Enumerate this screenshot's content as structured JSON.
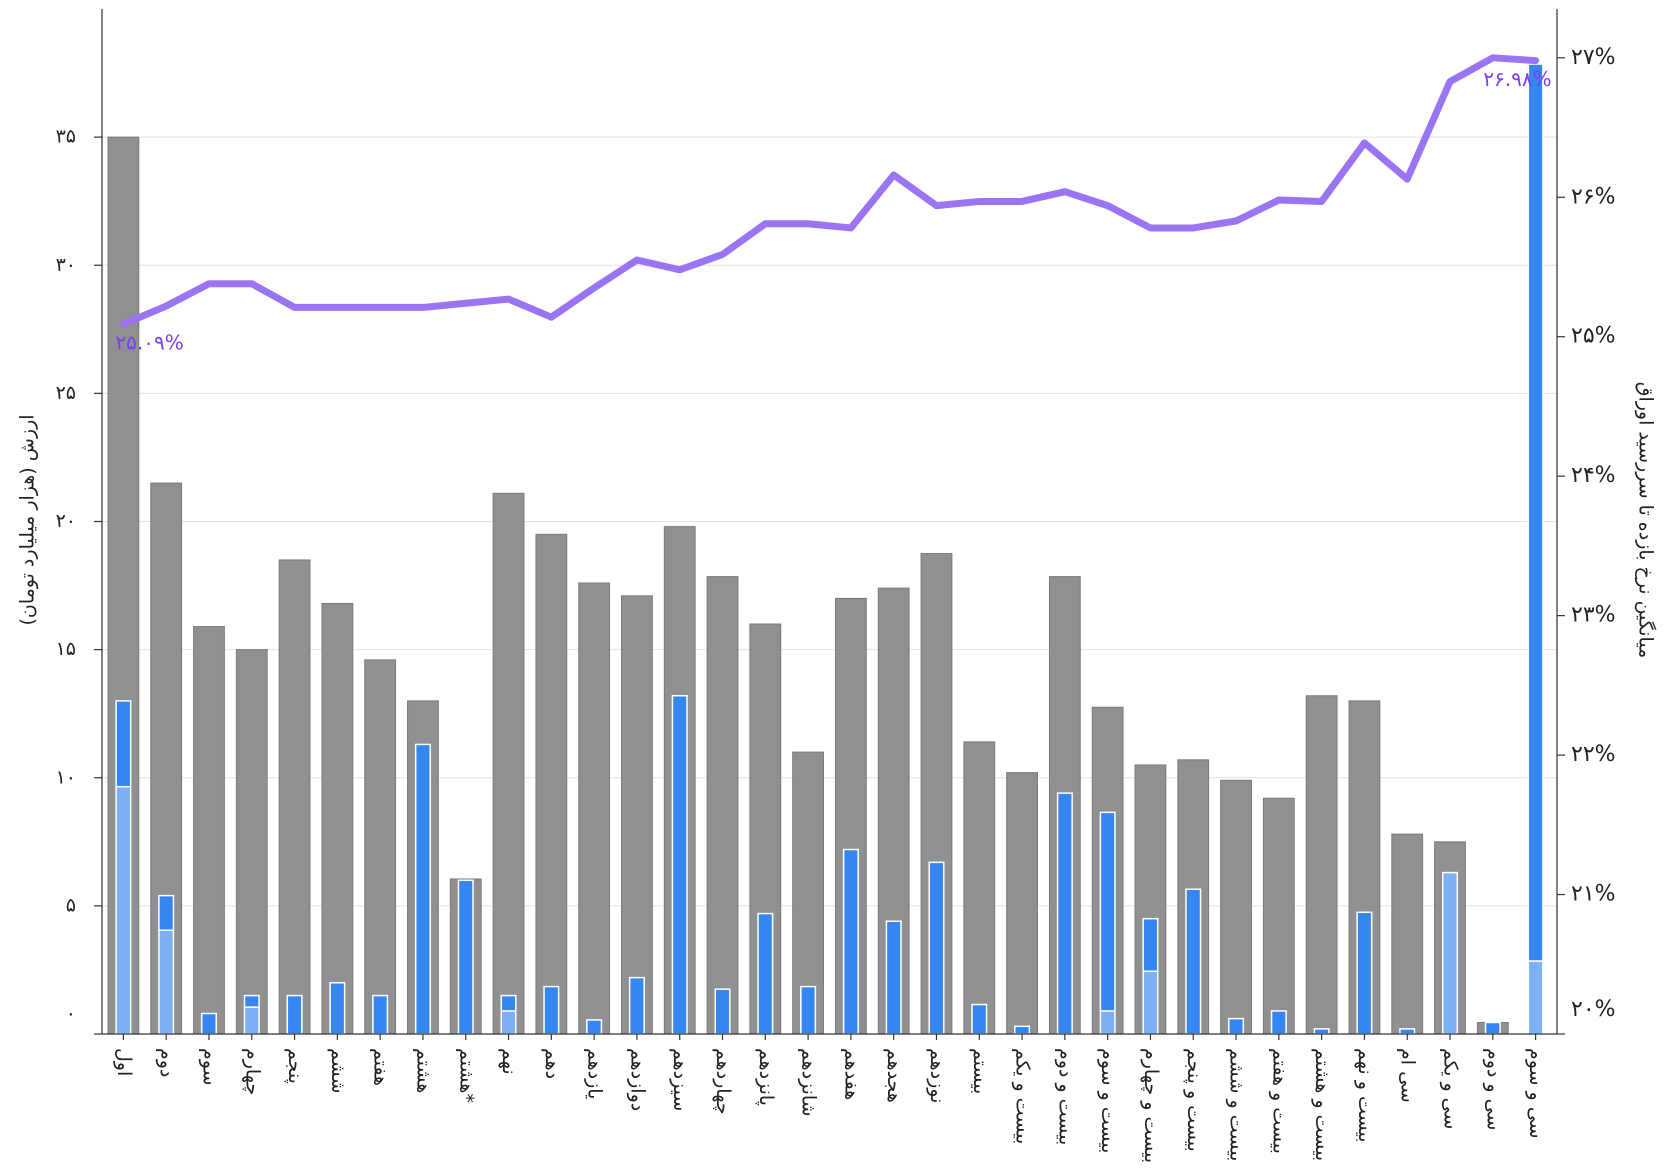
{
  "chart_data": {
    "type": "bar",
    "y_label": "ارزش (هزار میلیارد تومان)",
    "y2_label": "میانگین نرخ بازده تا سررسید اوراق",
    "categories": [
      "اول",
      "دوم",
      "سوم",
      "چهارم",
      "پنجم",
      "ششم",
      "هفتم",
      "هشتم",
      "هشتم*",
      "نهم",
      "دهم",
      "یازدهم",
      "دوازدهم",
      "سیزدهم",
      "چهاردهم",
      "پانزدهم",
      "شانزدهم",
      "هفدهم",
      "هجدهم",
      "نوزدهم",
      "بیستم",
      "بیست و یکم",
      "بیست و دوم",
      "بیست و سوم",
      "بیست و چهارم",
      "بیست و پنجم",
      "بیست و ششم",
      "بیست و هفتم",
      "بیست و هشتم",
      "بیست و نهم",
      "سی ام",
      "سی و یکم",
      "سی و دوم",
      "سی و سوم"
    ],
    "ylim": [
      0,
      40
    ],
    "yticks": [
      {
        "value": 0,
        "label": "۰"
      },
      {
        "value": 5,
        "label": "۵"
      },
      {
        "value": 10,
        "label": "۱۰"
      },
      {
        "value": 15,
        "label": "۱۵"
      },
      {
        "value": 20,
        "label": "۲۰"
      },
      {
        "value": 25,
        "label": "۲۵"
      },
      {
        "value": 30,
        "label": "۳۰"
      },
      {
        "value": 35,
        "label": "۳۵"
      }
    ],
    "y2lim": [
      20,
      27.35
    ],
    "y2ticks": [
      {
        "value": 20,
        "label": "۲۰%"
      },
      {
        "value": 21,
        "label": "۲۱%"
      },
      {
        "value": 22,
        "label": "۲۲%"
      },
      {
        "value": 23,
        "label": "۲۳%"
      },
      {
        "value": 24,
        "label": "۲۴%"
      },
      {
        "value": 25,
        "label": "۲۵%"
      },
      {
        "value": 26,
        "label": "۲۶%"
      },
      {
        "value": 27,
        "label": "۲۷%"
      }
    ],
    "grid": true,
    "series": [
      {
        "type": "bar",
        "color": "#8f9091",
        "values": [
          35.0,
          21.5,
          15.9,
          15.0,
          18.5,
          16.8,
          14.6,
          13.0,
          6.05,
          21.1,
          19.5,
          17.6,
          17.1,
          19.8,
          17.85,
          16.0,
          11.0,
          17.0,
          17.4,
          18.75,
          11.4,
          10.2,
          17.85,
          12.75,
          10.5,
          10.7,
          9.9,
          9.2,
          13.2,
          13.0,
          7.8,
          7.5,
          0.45,
          0
        ]
      },
      {
        "type": "bar",
        "stack": "inner",
        "color": "#7eb0f6",
        "values": [
          9.65,
          4.05,
          0,
          1.05,
          0,
          0,
          0,
          0,
          0,
          0.9,
          0,
          0,
          0,
          0,
          0,
          0,
          0,
          0,
          0,
          0,
          0,
          0,
          0,
          0.9,
          2.45,
          0,
          0,
          0,
          0,
          0,
          0,
          6.3,
          0,
          2.85
        ]
      },
      {
        "type": "bar",
        "stack": "inner",
        "color": "#3686f2",
        "values": [
          3.35,
          1.35,
          0.8,
          0.45,
          1.5,
          2.0,
          1.5,
          11.3,
          6.0,
          0.6,
          1.85,
          0.55,
          2.2,
          13.2,
          1.75,
          4.7,
          1.85,
          7.2,
          4.4,
          6.7,
          1.15,
          0.3,
          9.4,
          7.75,
          2.05,
          5.65,
          0.6,
          0.9,
          0.2,
          4.75,
          0.2,
          0,
          0.45,
          35.0
        ]
      },
      {
        "type": "line",
        "axis": "y2",
        "color": "#9b74f4",
        "label_color": "#7a3ff2",
        "values": [
          25.09,
          25.22,
          25.38,
          25.38,
          25.21,
          25.21,
          25.21,
          25.21,
          25.24,
          25.27,
          25.14,
          25.35,
          25.55,
          25.48,
          25.59,
          25.81,
          25.81,
          25.78,
          26.16,
          25.94,
          25.97,
          25.97,
          26.04,
          25.94,
          25.78,
          25.78,
          25.83,
          25.98,
          25.97,
          26.39,
          26.13,
          26.83,
          27.0,
          26.98
        ],
        "value_labels": [
          "۲۵.۰۹%",
          null,
          null,
          null,
          null,
          null,
          null,
          null,
          null,
          null,
          null,
          null,
          null,
          null,
          null,
          null,
          null,
          null,
          null,
          null,
          null,
          null,
          null,
          null,
          null,
          null,
          null,
          null,
          null,
          null,
          null,
          null,
          null,
          "۲۶.۹۸%"
        ]
      }
    ]
  }
}
